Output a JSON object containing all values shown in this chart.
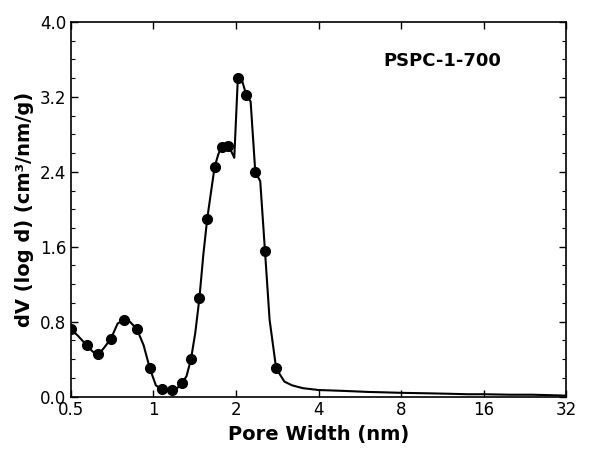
{
  "x_line": [
    0.5,
    0.53,
    0.57,
    0.6,
    0.63,
    0.66,
    0.7,
    0.74,
    0.78,
    0.82,
    0.87,
    0.92,
    0.97,
    1.02,
    1.07,
    1.12,
    1.17,
    1.22,
    1.27,
    1.32,
    1.37,
    1.42,
    1.47,
    1.52,
    1.57,
    1.62,
    1.67,
    1.72,
    1.77,
    1.82,
    1.87,
    1.92,
    1.97,
    2.03,
    2.1,
    2.18,
    2.26,
    2.35,
    2.45,
    2.55,
    2.65,
    2.8,
    3.0,
    3.2,
    3.5,
    4.0,
    4.5,
    5.0,
    5.5,
    6.0,
    7.0,
    8.0,
    10.0,
    12.0,
    14.0,
    16.0,
    20.0,
    24.0,
    28.0,
    32.0
  ],
  "y_line": [
    0.72,
    0.65,
    0.55,
    0.48,
    0.45,
    0.52,
    0.62,
    0.78,
    0.82,
    0.8,
    0.72,
    0.55,
    0.3,
    0.12,
    0.08,
    0.07,
    0.07,
    0.09,
    0.14,
    0.22,
    0.4,
    0.68,
    1.05,
    1.52,
    1.9,
    2.18,
    2.45,
    2.58,
    2.67,
    2.7,
    2.68,
    2.62,
    2.55,
    3.4,
    3.38,
    3.22,
    3.15,
    2.4,
    2.3,
    1.55,
    0.82,
    0.3,
    0.16,
    0.12,
    0.09,
    0.07,
    0.065,
    0.06,
    0.055,
    0.05,
    0.045,
    0.04,
    0.035,
    0.03,
    0.025,
    0.025,
    0.02,
    0.02,
    0.015,
    0.01
  ],
  "dot_x": [
    0.5,
    0.57,
    0.63,
    0.7,
    0.78,
    0.87,
    0.97,
    1.07,
    1.17,
    1.27,
    1.37,
    1.47,
    1.57,
    1.67,
    1.77,
    1.87,
    2.03,
    2.18,
    2.35,
    2.55,
    2.8
  ],
  "dot_y": [
    0.72,
    0.55,
    0.45,
    0.62,
    0.82,
    0.72,
    0.3,
    0.08,
    0.07,
    0.14,
    0.4,
    1.05,
    1.9,
    2.45,
    2.67,
    2.68,
    3.4,
    3.22,
    2.4,
    1.55,
    0.3
  ],
  "xlabel": "Pore Width (nm)",
  "ylabel": "dV (log d) (cm³/nm/g)",
  "label": "PSPC-1-700",
  "xlim": [
    0.5,
    32
  ],
  "ylim": [
    0.0,
    4.0
  ],
  "yticks": [
    0.0,
    0.8,
    1.6,
    2.4,
    3.2,
    4.0
  ],
  "xtick_labels": [
    "0.5",
    "1",
    "2",
    "4",
    "8",
    "16",
    "32"
  ],
  "xtick_values": [
    0.5,
    1,
    2,
    4,
    8,
    16,
    32
  ],
  "line_color": "#000000",
  "marker_color": "#000000",
  "bg_color": "#ffffff",
  "label_fontsize": 14,
  "tick_fontsize": 12,
  "annotation_fontsize": 13
}
